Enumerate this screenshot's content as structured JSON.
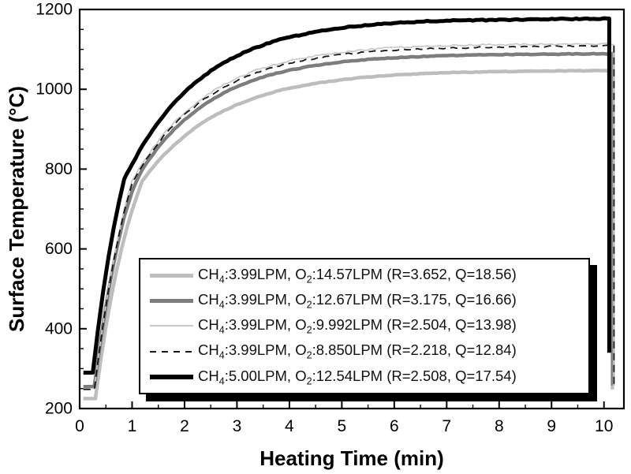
{
  "chart_data": {
    "type": "line",
    "title": "",
    "xlabel": "Heating Time (min)",
    "ylabel": "Surface Temperature (°C)",
    "xlim": [
      0,
      10.38
    ],
    "ylim": [
      200,
      1200
    ],
    "grid": false,
    "legend_position": "inside-bottom-left",
    "x_major_ticks": [
      0,
      1,
      2,
      3,
      4,
      5,
      6,
      7,
      8,
      9,
      10
    ],
    "x_tick_labels": [
      "0",
      "1",
      "2",
      "3",
      "4",
      "5",
      "6",
      "7",
      "8",
      "9",
      "10"
    ],
    "x_minor_step": 0.5,
    "y_major_ticks": [
      200,
      400,
      600,
      800,
      1000,
      1200
    ],
    "y_tick_labels": [
      "200",
      "400",
      "600",
      "800",
      "1000",
      "1200"
    ],
    "y_minor_step": 50,
    "frame_color": "#000000",
    "background": "#ffffff",
    "series": [
      {
        "label_plain": "CH4:3.99LPM, O2:14.57LPM (R=3.652, Q=18.56)",
        "label_parts": {
          "prefix": "CH",
          "sub1": "4",
          "mid": ":3.99LPM, O",
          "sub2": "2",
          "suffix": ":14.57LPM (R=3.652, Q=18.56)"
        },
        "color": "#bdbdbd",
        "width": 4.5,
        "style": "solid",
        "noise": 0.4,
        "sample_thickness": 5,
        "points": [
          [
            0.07,
            225
          ],
          [
            0.3,
            225
          ],
          [
            0.4,
            320
          ],
          [
            0.5,
            404
          ],
          [
            0.6,
            478
          ],
          [
            0.7,
            543
          ],
          [
            0.8,
            601
          ],
          [
            0.9,
            652
          ],
          [
            1.0,
            697
          ],
          [
            1.19,
            770
          ],
          [
            1.4,
            805
          ],
          [
            1.6,
            835
          ],
          [
            1.8,
            860
          ],
          [
            2.0,
            883
          ],
          [
            2.25,
            908
          ],
          [
            2.5,
            929
          ],
          [
            2.75,
            946
          ],
          [
            3.0,
            962
          ],
          [
            3.25,
            974
          ],
          [
            3.5,
            985
          ],
          [
            3.75,
            995
          ],
          [
            4.0,
            1003
          ],
          [
            4.5,
            1015
          ],
          [
            5.0,
            1024
          ],
          [
            5.5,
            1031
          ],
          [
            6.0,
            1036
          ],
          [
            6.5,
            1039
          ],
          [
            7.0,
            1042
          ],
          [
            7.5,
            1043
          ],
          [
            8.0,
            1044
          ],
          [
            8.5,
            1045
          ],
          [
            9.0,
            1046
          ],
          [
            10.0,
            1047
          ],
          [
            10.16,
            1047
          ],
          [
            10.16,
            248
          ]
        ]
      },
      {
        "label_plain": "CH4:3.99LPM, O2:12.67LPM (R=3.175, Q=16.66)",
        "label_parts": {
          "prefix": "CH",
          "sub1": "4",
          "mid": ":3.99LPM, O",
          "sub2": "2",
          "suffix": ":12.67LPM (R=3.175, Q=16.66)"
        },
        "color": "#7d7d7d",
        "width": 4.5,
        "style": "solid",
        "noise": 0.5,
        "sample_thickness": 5,
        "points": [
          [
            0.07,
            255
          ],
          [
            0.28,
            255
          ],
          [
            0.35,
            325
          ],
          [
            0.45,
            415
          ],
          [
            0.55,
            495
          ],
          [
            0.65,
            564
          ],
          [
            0.75,
            626
          ],
          [
            0.85,
            681
          ],
          [
            1.0,
            745
          ],
          [
            1.2,
            801
          ],
          [
            1.4,
            838
          ],
          [
            1.6,
            871
          ],
          [
            1.8,
            899
          ],
          [
            2.0,
            924
          ],
          [
            2.25,
            950
          ],
          [
            2.5,
            972
          ],
          [
            2.75,
            991
          ],
          [
            3.0,
            1007
          ],
          [
            3.25,
            1020
          ],
          [
            3.5,
            1031
          ],
          [
            3.75,
            1040
          ],
          [
            4.0,
            1048
          ],
          [
            4.5,
            1060
          ],
          [
            5.0,
            1069
          ],
          [
            5.5,
            1075
          ],
          [
            6.0,
            1079
          ],
          [
            6.5,
            1082
          ],
          [
            7.0,
            1084
          ],
          [
            7.5,
            1086
          ],
          [
            8.0,
            1087
          ],
          [
            9.0,
            1088
          ],
          [
            10.0,
            1089
          ],
          [
            10.17,
            1089
          ],
          [
            10.17,
            258
          ]
        ]
      },
      {
        "label_plain": "CH4:3.99LPM, O2:9.992LPM (R=2.504, Q=13.98)",
        "label_parts": {
          "prefix": "CH",
          "sub1": "4",
          "mid": ":3.99LPM, O",
          "sub2": "2",
          "suffix": ":9.992LPM (R=2.504, Q=13.98)"
        },
        "color": "#c8c8c8",
        "width": 1.7,
        "style": "solid",
        "noise": 1.1,
        "sample_thickness": 2,
        "points": [
          [
            0.07,
            250
          ],
          [
            0.28,
            250
          ],
          [
            0.35,
            324
          ],
          [
            0.45,
            419
          ],
          [
            0.55,
            503
          ],
          [
            0.65,
            576
          ],
          [
            0.75,
            641
          ],
          [
            0.85,
            699
          ],
          [
            1.0,
            772
          ],
          [
            1.2,
            815
          ],
          [
            1.4,
            853
          ],
          [
            1.6,
            887
          ],
          [
            1.8,
            916
          ],
          [
            2.0,
            942
          ],
          [
            2.25,
            969
          ],
          [
            2.5,
            992
          ],
          [
            2.75,
            1012
          ],
          [
            3.0,
            1028
          ],
          [
            3.25,
            1042
          ],
          [
            3.5,
            1054
          ],
          [
            3.75,
            1063
          ],
          [
            4.0,
            1072
          ],
          [
            4.5,
            1084
          ],
          [
            5.0,
            1093
          ],
          [
            5.5,
            1100
          ],
          [
            6.0,
            1104
          ],
          [
            6.5,
            1107
          ],
          [
            7.0,
            1109
          ],
          [
            7.5,
            1111
          ],
          [
            8.0,
            1112
          ],
          [
            9.0,
            1113
          ],
          [
            10.0,
            1114
          ],
          [
            10.18,
            1114
          ],
          [
            10.18,
            255
          ]
        ]
      },
      {
        "label_plain": "CH4:3.99LPM, O2:8.850LPM (R=2.218, Q=12.84)",
        "label_parts": {
          "prefix": "CH",
          "sub1": "4",
          "mid": ":3.99LPM, O",
          "sub2": "2",
          "suffix": ":8.850LPM (R=2.218, Q=12.84)"
        },
        "color": "#161616",
        "width": 1.8,
        "style": "dashed",
        "noise": 1.0,
        "sample_thickness": 2,
        "points": [
          [
            0.07,
            248
          ],
          [
            0.28,
            248
          ],
          [
            0.35,
            320
          ],
          [
            0.45,
            414
          ],
          [
            0.55,
            498
          ],
          [
            0.65,
            571
          ],
          [
            0.75,
            636
          ],
          [
            0.85,
            694
          ],
          [
            1.0,
            766
          ],
          [
            1.2,
            810
          ],
          [
            1.4,
            848
          ],
          [
            1.6,
            882
          ],
          [
            1.8,
            911
          ],
          [
            2.0,
            937
          ],
          [
            2.25,
            963
          ],
          [
            2.5,
            986
          ],
          [
            2.75,
            1006
          ],
          [
            3.0,
            1022
          ],
          [
            3.25,
            1036
          ],
          [
            3.5,
            1048
          ],
          [
            3.75,
            1057
          ],
          [
            4.0,
            1066
          ],
          [
            4.5,
            1078
          ],
          [
            5.0,
            1087
          ],
          [
            5.5,
            1094
          ],
          [
            6.0,
            1098
          ],
          [
            6.5,
            1101
          ],
          [
            7.0,
            1103
          ],
          [
            7.5,
            1105
          ],
          [
            8.0,
            1106
          ],
          [
            9.0,
            1108
          ],
          [
            10.0,
            1109
          ],
          [
            10.19,
            1109
          ],
          [
            10.19,
            255
          ]
        ]
      },
      {
        "label_plain": "CH4:5.00LPM, O2:12.54LPM (R=2.508, Q=17.54)",
        "label_parts": {
          "prefix": "CH",
          "sub1": "4",
          "mid": ":5.00LPM, O",
          "sub2": "2",
          "suffix": ":12.54LPM (R=2.508, Q=17.54)"
        },
        "color": "#000000",
        "width": 5,
        "style": "solid",
        "noise": 0.7,
        "sample_thickness": 6,
        "points": [
          [
            0.07,
            290
          ],
          [
            0.25,
            290
          ],
          [
            0.35,
            399
          ],
          [
            0.45,
            495
          ],
          [
            0.55,
            580
          ],
          [
            0.65,
            653
          ],
          [
            0.75,
            718
          ],
          [
            0.85,
            775
          ],
          [
            1.0,
            812
          ],
          [
            1.2,
            859
          ],
          [
            1.4,
            899
          ],
          [
            1.6,
            935
          ],
          [
            1.8,
            966
          ],
          [
            2.0,
            993
          ],
          [
            2.25,
            1022
          ],
          [
            2.5,
            1046
          ],
          [
            2.75,
            1067
          ],
          [
            3.0,
            1084
          ],
          [
            3.25,
            1099
          ],
          [
            3.5,
            1111
          ],
          [
            3.75,
            1122
          ],
          [
            4.0,
            1130
          ],
          [
            4.5,
            1144
          ],
          [
            5.0,
            1154
          ],
          [
            5.5,
            1161
          ],
          [
            6.0,
            1166
          ],
          [
            6.5,
            1170
          ],
          [
            7.0,
            1172
          ],
          [
            7.5,
            1173
          ],
          [
            8.0,
            1174
          ],
          [
            9.0,
            1176
          ],
          [
            10.0,
            1177
          ],
          [
            10.1,
            1177
          ],
          [
            10.1,
            340
          ]
        ]
      }
    ]
  }
}
